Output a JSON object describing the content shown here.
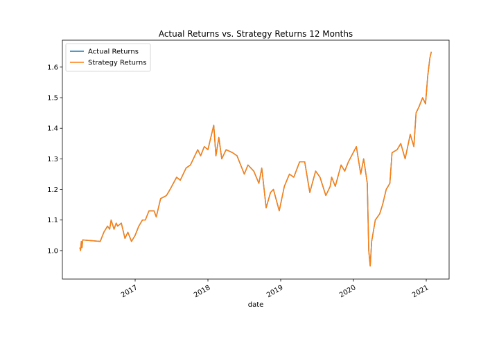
{
  "chart_data": {
    "type": "line",
    "title": "Actual Returns vs. Strategy Returns 12 Months",
    "x_label": "date",
    "x": [
      2016.24,
      2016.25,
      2016.26,
      2016.27,
      2016.28,
      2016.52,
      2016.57,
      2016.62,
      2016.65,
      2016.67,
      2016.71,
      2016.74,
      2016.76,
      2016.81,
      2016.86,
      2016.9,
      2016.95,
      2017.0,
      2017.05,
      2017.1,
      2017.14,
      2017.19,
      2017.26,
      2017.29,
      2017.35,
      2017.43,
      2017.48,
      2017.57,
      2017.62,
      2017.7,
      2017.76,
      2017.86,
      2017.9,
      2017.95,
      2018.0,
      2018.05,
      2018.08,
      2018.11,
      2018.15,
      2018.19,
      2018.25,
      2018.34,
      2018.4,
      2018.5,
      2018.55,
      2018.63,
      2018.7,
      2018.74,
      2018.8,
      2018.86,
      2018.9,
      2018.98,
      2019.05,
      2019.12,
      2019.18,
      2019.26,
      2019.33,
      2019.4,
      2019.48,
      2019.54,
      2019.62,
      2019.68,
      2019.7,
      2019.75,
      2019.83,
      2019.88,
      2019.93,
      2020.04,
      2020.1,
      2020.14,
      2020.19,
      2020.21,
      2020.23,
      2020.25,
      2020.3,
      2020.36,
      2020.4,
      2020.45,
      2020.5,
      2020.53,
      2020.6,
      2020.65,
      2020.71,
      2020.78,
      2020.83,
      2020.86,
      2020.9,
      2020.95,
      2020.99,
      2021.02,
      2021.05,
      2021.07
    ],
    "series": [
      {
        "name": "Actual Returns",
        "color": "#1f77b4",
        "values": [
          1.01,
          1.0,
          1.03,
          1.01,
          1.035,
          1.03,
          1.06,
          1.08,
          1.07,
          1.1,
          1.07,
          1.09,
          1.08,
          1.09,
          1.04,
          1.06,
          1.03,
          1.05,
          1.08,
          1.1,
          1.1,
          1.13,
          1.13,
          1.11,
          1.17,
          1.18,
          1.2,
          1.24,
          1.23,
          1.27,
          1.28,
          1.33,
          1.31,
          1.34,
          1.33,
          1.38,
          1.41,
          1.31,
          1.37,
          1.3,
          1.33,
          1.32,
          1.31,
          1.25,
          1.28,
          1.26,
          1.22,
          1.27,
          1.14,
          1.19,
          1.2,
          1.13,
          1.21,
          1.25,
          1.24,
          1.29,
          1.29,
          1.19,
          1.26,
          1.24,
          1.18,
          1.21,
          1.24,
          1.21,
          1.28,
          1.26,
          1.29,
          1.34,
          1.25,
          1.3,
          1.22,
          1.0,
          0.95,
          1.03,
          1.1,
          1.12,
          1.15,
          1.2,
          1.22,
          1.32,
          1.33,
          1.35,
          1.3,
          1.38,
          1.34,
          1.45,
          1.47,
          1.5,
          1.48,
          1.57,
          1.63,
          1.65
        ]
      },
      {
        "name": "Strategy Returns",
        "color": "#ff7f0e",
        "values": [
          1.01,
          1.0,
          1.03,
          1.01,
          1.035,
          1.03,
          1.06,
          1.08,
          1.07,
          1.1,
          1.07,
          1.09,
          1.08,
          1.09,
          1.04,
          1.06,
          1.03,
          1.05,
          1.08,
          1.1,
          1.1,
          1.13,
          1.13,
          1.11,
          1.17,
          1.18,
          1.2,
          1.24,
          1.23,
          1.27,
          1.28,
          1.33,
          1.31,
          1.34,
          1.33,
          1.38,
          1.41,
          1.31,
          1.37,
          1.3,
          1.33,
          1.32,
          1.31,
          1.25,
          1.28,
          1.26,
          1.22,
          1.27,
          1.14,
          1.19,
          1.2,
          1.13,
          1.21,
          1.25,
          1.24,
          1.29,
          1.29,
          1.19,
          1.26,
          1.24,
          1.18,
          1.21,
          1.24,
          1.21,
          1.28,
          1.26,
          1.29,
          1.34,
          1.25,
          1.3,
          1.22,
          1.0,
          0.95,
          1.03,
          1.1,
          1.12,
          1.15,
          1.2,
          1.22,
          1.32,
          1.33,
          1.35,
          1.3,
          1.38,
          1.34,
          1.45,
          1.47,
          1.5,
          1.48,
          1.57,
          1.63,
          1.65
        ]
      }
    ],
    "xlim": [
      2016.0,
      2021.314
    ],
    "xticks": [
      2017,
      2018,
      2019,
      2020,
      2021
    ],
    "ylim": [
      0.907,
      1.688
    ],
    "yticks": [
      {
        "value": 1,
        "label": "1.0"
      },
      1.1,
      1.2,
      1.3,
      1.4,
      1.5,
      1.6
    ],
    "legend": "upper left",
    "grid": false
  }
}
